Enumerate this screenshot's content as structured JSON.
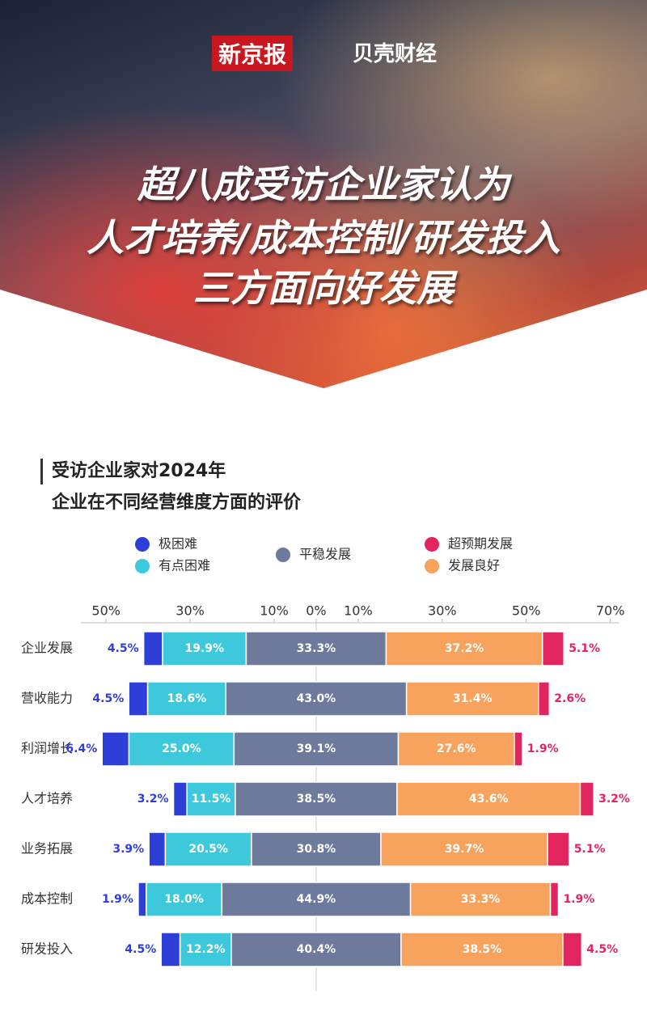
{
  "header": {
    "logos": [
      "新京报",
      "贝壳财经"
    ],
    "headline": [
      "超八成受访企业家认为",
      "人才培养/成本控制/研发投入",
      "三方面向好发展"
    ]
  },
  "chart_data": {
    "type": "diverging_bar",
    "title": [
      "受访企业家对2024年",
      "企业在不同经营维度方面的评价"
    ],
    "categories": [
      "企业发展",
      "营收能力",
      "利润增长",
      "人才培养",
      "业务拓展",
      "成本控制",
      "研发投入"
    ],
    "series": [
      {
        "name": "极困难",
        "color": "#2e3fd8",
        "values": [
          4.5,
          4.5,
          6.4,
          3.2,
          3.9,
          1.9,
          4.5
        ],
        "value_labels": [
          "4.5%",
          "4.5%",
          "6.4%",
          "3.2%",
          "3.9%",
          "1.9%",
          "4.5%"
        ]
      },
      {
        "name": "有点困难",
        "color": "#3ec8dc",
        "values": [
          19.9,
          18.6,
          25.0,
          11.5,
          20.5,
          18.0,
          12.2
        ],
        "value_labels": [
          "19.9%",
          "18.6%",
          "25.0%",
          "11.5%",
          "20.5%",
          "18.0%",
          "12.2%"
        ]
      },
      {
        "name": "平稳发展",
        "color": "#6e7a9c",
        "values": [
          33.3,
          43.0,
          39.1,
          38.5,
          30.8,
          44.9,
          40.4
        ],
        "value_labels": [
          "33.3%",
          "43.0%",
          "39.1%",
          "38.5%",
          "30.8%",
          "44.9%",
          "40.4%"
        ]
      },
      {
        "name": "发展良好",
        "color": "#f7a35e",
        "values": [
          37.2,
          31.4,
          27.6,
          43.6,
          39.7,
          33.3,
          38.5
        ],
        "value_labels": [
          "37.2%",
          "31.4%",
          "27.6%",
          "43.6%",
          "39.7%",
          "33.3%",
          "38.5%"
        ]
      },
      {
        "name": "超预期发展",
        "color": "#e2255e",
        "values": [
          5.1,
          2.6,
          1.9,
          3.2,
          5.1,
          1.9,
          4.5
        ],
        "value_labels": [
          "5.1%",
          "2.6%",
          "1.9%",
          "3.2%",
          "5.1%",
          "1.9%",
          "4.5%"
        ]
      }
    ],
    "xlim": [
      -56,
      72
    ],
    "xticks": [
      {
        "value": -50,
        "label": "50%"
      },
      {
        "value": -30,
        "label": "30%"
      },
      {
        "value": -10,
        "label": "10%"
      },
      {
        "value": 0,
        "label": "0%"
      },
      {
        "value": 10,
        "label": "10%"
      },
      {
        "value": 30,
        "label": "30%"
      },
      {
        "value": 50,
        "label": "50%"
      },
      {
        "value": 70,
        "label": "70%"
      }
    ]
  }
}
